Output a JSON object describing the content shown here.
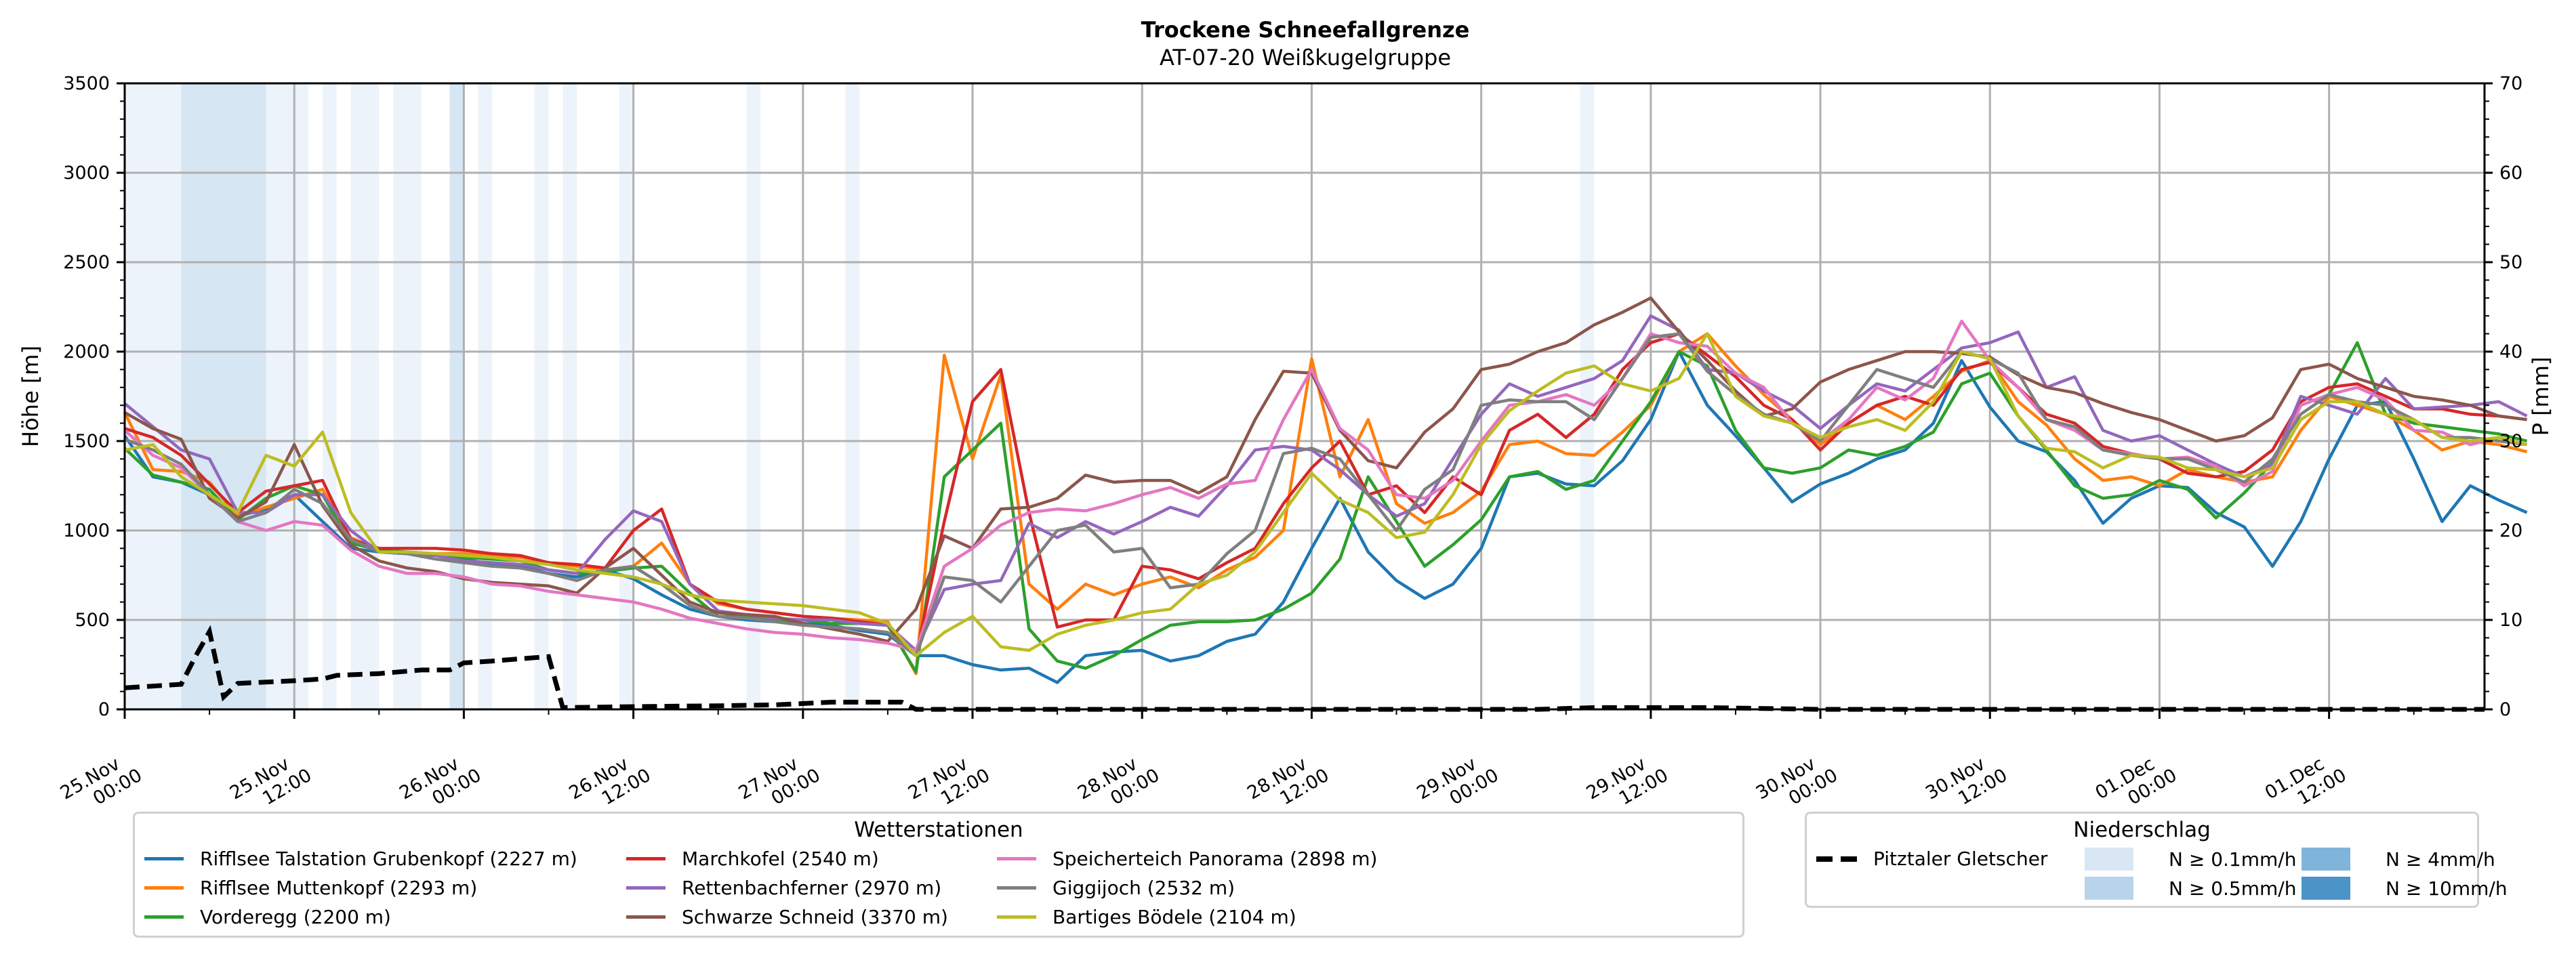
{
  "chart_data": {
    "type": "line",
    "title": "Trockene Schneefallgrenze",
    "subtitle": "AT-07-20 Weißkugelgruppe",
    "ylabel": "Höhe [m]",
    "ylabel_right": "P [mm]",
    "ylim": [
      0,
      3500
    ],
    "ylim_right": [
      0,
      70
    ],
    "yticks": [
      "0",
      "500",
      "1000",
      "1500",
      "2000",
      "2500",
      "3000",
      "3500"
    ],
    "yticks_right": [
      "0",
      "10",
      "20",
      "30",
      "40",
      "50",
      "60",
      "70"
    ],
    "x_unit": "hours since 25.Nov 00:00",
    "xlim": [
      0,
      167
    ],
    "xticks": [
      {
        "h": 0,
        "line1": "25.Nov",
        "line2": "00:00"
      },
      {
        "h": 12,
        "line1": "25.Nov",
        "line2": "12:00"
      },
      {
        "h": 24,
        "line1": "26.Nov",
        "line2": "00:00"
      },
      {
        "h": 36,
        "line1": "26.Nov",
        "line2": "12:00"
      },
      {
        "h": 48,
        "line1": "27.Nov",
        "line2": "00:00"
      },
      {
        "h": 60,
        "line1": "27.Nov",
        "line2": "12:00"
      },
      {
        "h": 72,
        "line1": "28.Nov",
        "line2": "00:00"
      },
      {
        "h": 84,
        "line1": "28.Nov",
        "line2": "12:00"
      },
      {
        "h": 96,
        "line1": "29.Nov",
        "line2": "00:00"
      },
      {
        "h": 108,
        "line1": "29.Nov",
        "line2": "12:00"
      },
      {
        "h": 120,
        "line1": "30.Nov",
        "line2": "00:00"
      },
      {
        "h": 132,
        "line1": "30.Nov",
        "line2": "12:00"
      },
      {
        "h": 144,
        "line1": "01.Dec",
        "line2": "00:00"
      },
      {
        "h": 156,
        "line1": "01.Dec",
        "line2": "12:00"
      }
    ],
    "grid": true,
    "x_step_hours": 2,
    "series": [
      {
        "name": "Rifflsee Talstation Grubenkopf (2227 m)",
        "color": "#1f77b4",
        "values": [
          1530,
          1300,
          1270,
          1200,
          1080,
          1120,
          1200,
          1050,
          900,
          880,
          870,
          860,
          840,
          810,
          800,
          760,
          740,
          780,
          730,
          640,
          560,
          520,
          500,
          490,
          480,
          470,
          440,
          420,
          300,
          300,
          250,
          220,
          230,
          150,
          300,
          320,
          330,
          270,
          300,
          380,
          420,
          600,
          900,
          1180,
          880,
          720,
          620,
          700,
          900,
          1300,
          1320,
          1260,
          1250,
          1390,
          1620,
          2000,
          1700,
          1530,
          1350,
          1160,
          1260,
          1320,
          1400,
          1450,
          1600,
          1950,
          1690,
          1500,
          1440,
          1280,
          1040,
          1180,
          1250,
          1240,
          1100,
          1020,
          800,
          1050,
          1400,
          1700,
          1720,
          1400,
          1050,
          1250,
          1170,
          1100
        ]
      },
      {
        "name": "Rifflsee Muttenkopf (2293 m)",
        "color": "#ff7f0e",
        "values": [
          1660,
          1340,
          1330,
          1270,
          1080,
          1130,
          1180,
          1230,
          960,
          890,
          880,
          870,
          870,
          860,
          850,
          820,
          800,
          780,
          800,
          930,
          700,
          590,
          560,
          540,
          520,
          510,
          500,
          490,
          200,
          1980,
          1400,
          1870,
          700,
          560,
          700,
          640,
          700,
          740,
          680,
          780,
          850,
          1000,
          1960,
          1300,
          1620,
          1150,
          1040,
          1100,
          1220,
          1480,
          1500,
          1430,
          1420,
          1550,
          1700,
          2000,
          2100,
          1920,
          1760,
          1620,
          1480,
          1600,
          1700,
          1620,
          1750,
          1890,
          1950,
          1720,
          1590,
          1400,
          1280,
          1300,
          1250,
          1340,
          1300,
          1270,
          1300,
          1560,
          1750,
          1700,
          1650,
          1560,
          1450,
          1500,
          1480,
          1440
        ]
      },
      {
        "name": "Vorderegg (2200 m)",
        "color": "#2ca02c",
        "values": [
          1460,
          1310,
          1270,
          1230,
          1060,
          1180,
          1250,
          1200,
          930,
          890,
          880,
          870,
          850,
          840,
          830,
          780,
          760,
          770,
          790,
          800,
          650,
          520,
          520,
          500,
          500,
          480,
          480,
          470,
          210,
          1300,
          1450,
          1600,
          450,
          270,
          230,
          300,
          390,
          470,
          490,
          490,
          500,
          560,
          650,
          840,
          1300,
          1050,
          800,
          920,
          1060,
          1300,
          1330,
          1230,
          1280,
          1500,
          1720,
          2000,
          1920,
          1560,
          1350,
          1320,
          1350,
          1450,
          1420,
          1470,
          1550,
          1820,
          1880,
          1640,
          1450,
          1250,
          1180,
          1200,
          1280,
          1230,
          1070,
          1210,
          1380,
          1700,
          1760,
          2050,
          1650,
          1600,
          1580,
          1560,
          1540,
          1500
        ]
      },
      {
        "name": "Marchkofel (2540 m)",
        "color": "#d62728",
        "values": [
          1570,
          1520,
          1420,
          1260,
          1100,
          1220,
          1250,
          1280,
          950,
          900,
          900,
          900,
          890,
          870,
          860,
          820,
          810,
          790,
          1000,
          1120,
          700,
          600,
          560,
          540,
          520,
          510,
          490,
          470,
          300,
          1050,
          1720,
          1900,
          1100,
          460,
          500,
          500,
          800,
          780,
          730,
          820,
          900,
          1150,
          1350,
          1500,
          1200,
          1250,
          1100,
          1300,
          1200,
          1560,
          1650,
          1520,
          1650,
          1900,
          2050,
          2100,
          1980,
          1860,
          1700,
          1620,
          1450,
          1600,
          1700,
          1750,
          1700,
          1900,
          1940,
          1800,
          1650,
          1600,
          1470,
          1430,
          1400,
          1320,
          1300,
          1330,
          1450,
          1720,
          1800,
          1820,
          1750,
          1680,
          1680,
          1650,
          1640,
          1620
        ]
      },
      {
        "name": "Rettenbachferner (2970 m)",
        "color": "#9467bd",
        "values": [
          1710,
          1580,
          1450,
          1400,
          1100,
          1100,
          1200,
          1200,
          1000,
          880,
          880,
          860,
          830,
          820,
          810,
          780,
          760,
          950,
          1110,
          1050,
          700,
          550,
          530,
          510,
          500,
          500,
          480,
          470,
          330,
          670,
          700,
          720,
          1040,
          960,
          1050,
          980,
          1050,
          1130,
          1080,
          1250,
          1450,
          1470,
          1450,
          1340,
          1200,
          1080,
          1150,
          1400,
          1650,
          1820,
          1750,
          1800,
          1850,
          1950,
          2200,
          2120,
          1900,
          1880,
          1780,
          1700,
          1570,
          1700,
          1820,
          1780,
          1900,
          2020,
          2050,
          2110,
          1800,
          1860,
          1560,
          1500,
          1530,
          1450,
          1370,
          1300,
          1370,
          1750,
          1700,
          1650,
          1850,
          1680,
          1690,
          1700,
          1720,
          1640
        ]
      },
      {
        "name": "Schwarze Schneid (3370 m)",
        "color": "#8c564b",
        "values": [
          1660,
          1570,
          1510,
          1180,
          1070,
          1160,
          1480,
          1140,
          920,
          830,
          790,
          770,
          730,
          710,
          700,
          690,
          650,
          790,
          900,
          750,
          600,
          540,
          530,
          520,
          480,
          450,
          420,
          380,
          560,
          970,
          900,
          1120,
          1130,
          1180,
          1310,
          1270,
          1280,
          1280,
          1210,
          1300,
          1620,
          1890,
          1880,
          1560,
          1390,
          1350,
          1550,
          1680,
          1900,
          1930,
          2000,
          2050,
          2150,
          2220,
          2300,
          2110,
          1950,
          1780,
          1640,
          1680,
          1830,
          1900,
          1950,
          2000,
          2000,
          1990,
          1970,
          1870,
          1800,
          1770,
          1710,
          1660,
          1620,
          1560,
          1500,
          1530,
          1630,
          1900,
          1930,
          1850,
          1800,
          1750,
          1730,
          1700,
          1640,
          1620
        ]
      },
      {
        "name": "Speicherteich Panorama (2898 m)",
        "color": "#e377c2",
        "values": [
          1560,
          1420,
          1350,
          1200,
          1050,
          1000,
          1050,
          1030,
          890,
          800,
          760,
          760,
          740,
          700,
          690,
          660,
          640,
          620,
          600,
          560,
          510,
          480,
          450,
          430,
          420,
          400,
          390,
          370,
          330,
          800,
          900,
          1030,
          1100,
          1120,
          1110,
          1150,
          1200,
          1240,
          1180,
          1260,
          1280,
          1620,
          1900,
          1570,
          1450,
          1200,
          1180,
          1280,
          1500,
          1700,
          1720,
          1760,
          1700,
          1850,
          2100,
          2050,
          2030,
          1880,
          1800,
          1600,
          1500,
          1620,
          1800,
          1730,
          1850,
          2170,
          1950,
          1800,
          1620,
          1560,
          1450,
          1430,
          1400,
          1410,
          1360,
          1250,
          1330,
          1700,
          1760,
          1800,
          1730,
          1560,
          1550,
          1480,
          1520,
          1480
        ]
      },
      {
        "name": "Giggijoch (2532 m)",
        "color": "#7f7f7f",
        "values": [
          1510,
          1450,
          1370,
          1200,
          1050,
          1100,
          1230,
          1150,
          950,
          880,
          870,
          840,
          820,
          800,
          790,
          760,
          720,
          780,
          800,
          700,
          580,
          520,
          510,
          490,
          470,
          460,
          450,
          430,
          300,
          740,
          720,
          600,
          800,
          1000,
          1030,
          880,
          900,
          680,
          700,
          870,
          1000,
          1430,
          1460,
          1400,
          1200,
          1000,
          1230,
          1340,
          1700,
          1730,
          1720,
          1720,
          1620,
          1850,
          2080,
          2100,
          1890,
          1760,
          1650,
          1600,
          1500,
          1700,
          1900,
          1850,
          1800,
          2000,
          1960,
          1880,
          1620,
          1580,
          1450,
          1420,
          1400,
          1400,
          1340,
          1270,
          1400,
          1650,
          1760,
          1720,
          1700,
          1620,
          1520,
          1520,
          1500,
          1480
        ]
      },
      {
        "name": "Bartiges Bödele (2104 m)",
        "color": "#bcbd22",
        "values": [
          1450,
          1480,
          1300,
          1200,
          1100,
          1420,
          1360,
          1550,
          1100,
          880,
          880,
          870,
          860,
          850,
          830,
          810,
          780,
          760,
          740,
          700,
          640,
          610,
          600,
          590,
          580,
          560,
          540,
          480,
          300,
          430,
          520,
          350,
          330,
          420,
          470,
          500,
          540,
          560,
          700,
          750,
          880,
          1100,
          1320,
          1170,
          1100,
          960,
          990,
          1200,
          1480,
          1670,
          1780,
          1880,
          1920,
          1820,
          1780,
          1850,
          2100,
          1750,
          1640,
          1600,
          1520,
          1580,
          1620,
          1560,
          1720,
          2000,
          1960,
          1640,
          1460,
          1440,
          1350,
          1420,
          1410,
          1350,
          1340,
          1300,
          1350,
          1620,
          1720,
          1720,
          1650,
          1620,
          1520,
          1500,
          1520,
          1480
        ]
      }
    ],
    "precip_series": {
      "name": "Pitztaler Gletscher",
      "color": "#000000",
      "style": "dashed",
      "axis": "right",
      "points": [
        [
          0,
          2.4
        ],
        [
          4,
          2.8
        ],
        [
          5,
          5.9
        ],
        [
          6,
          8.7
        ],
        [
          7,
          1.4
        ],
        [
          8,
          2.9
        ],
        [
          12,
          3.2
        ],
        [
          14,
          3.4
        ],
        [
          15,
          3.8
        ],
        [
          18,
          4.0
        ],
        [
          21,
          4.4
        ],
        [
          23,
          4.4
        ],
        [
          24,
          5.2
        ],
        [
          26,
          5.4
        ],
        [
          30,
          5.9
        ],
        [
          31,
          0.2
        ],
        [
          36,
          0.3
        ],
        [
          42,
          0.4
        ],
        [
          46,
          0.5
        ],
        [
          50,
          0.8
        ],
        [
          55,
          0.8
        ],
        [
          56,
          0.0
        ],
        [
          100,
          0.0
        ],
        [
          104,
          0.2
        ],
        [
          112,
          0.2
        ],
        [
          116,
          0.1
        ],
        [
          120,
          0.0
        ],
        [
          167,
          0.0
        ]
      ]
    },
    "precip_bands": [
      {
        "from": 0,
        "to": 4,
        "level": "N ≥ 0.1mm/h"
      },
      {
        "from": 4,
        "to": 10,
        "level": "N ≥ 0.5mm/h"
      },
      {
        "from": 10,
        "to": 13,
        "level": "N ≥ 0.1mm/h"
      },
      {
        "from": 14,
        "to": 15,
        "level": "N ≥ 0.1mm/h"
      },
      {
        "from": 16,
        "to": 18,
        "level": "N ≥ 0.1mm/h"
      },
      {
        "from": 19,
        "to": 21,
        "level": "N ≥ 0.1mm/h"
      },
      {
        "from": 23,
        "to": 24,
        "level": "N ≥ 0.5mm/h"
      },
      {
        "from": 25,
        "to": 26,
        "level": "N ≥ 0.1mm/h"
      },
      {
        "from": 29,
        "to": 30,
        "level": "N ≥ 0.1mm/h"
      },
      {
        "from": 31,
        "to": 32,
        "level": "N ≥ 0.1mm/h"
      },
      {
        "from": 35,
        "to": 36,
        "level": "N ≥ 0.1mm/h"
      },
      {
        "from": 44,
        "to": 45,
        "level": "N ≥ 0.1mm/h"
      },
      {
        "from": 51,
        "to": 52,
        "level": "N ≥ 0.1mm/h"
      },
      {
        "from": 103,
        "to": 104,
        "level": "N ≥ 0.1mm/h"
      }
    ]
  },
  "legend_stations": {
    "title": "Wetterstationen"
  },
  "legend_precip": {
    "title": "Niederschlag",
    "line_label": "Pitztaler Gletscher",
    "levels": [
      {
        "label": "N ≥ 0.1mm/h",
        "color": "#d9e7f5"
      },
      {
        "label": "N ≥ 0.5mm/h",
        "color": "#b9d4ea"
      },
      {
        "label": "N ≥ 4mm/h",
        "color": "#7fb5da"
      },
      {
        "label": "N ≥ 10mm/h",
        "color": "#4a94c8"
      }
    ],
    "band_colors": {
      "N ≥ 0.1mm/h": "#edf3fa",
      "N ≥ 0.5mm/h": "#d6e6f3"
    }
  }
}
